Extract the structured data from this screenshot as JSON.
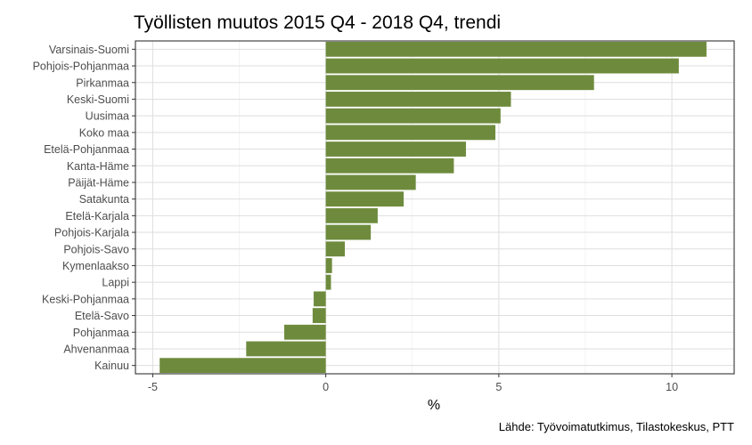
{
  "chart_data": {
    "type": "bar",
    "orientation": "horizontal",
    "title": "Työllisten muutos 2015 Q4 - 2018 Q4, trendi",
    "xlabel": "%",
    "ylabel": "",
    "caption": "Lähde: Työvoimatutkimus, Tilastokeskus, PTT",
    "xlim": [
      -5.5,
      11.8
    ],
    "xticks": [
      -5,
      0,
      5,
      10
    ],
    "xtick_labels": [
      "-5",
      "0",
      "5",
      "10"
    ],
    "grid": true,
    "bar_color": "#6e8b3d",
    "categories": [
      "Varsinais-Suomi",
      "Pohjois-Pohjanmaa",
      "Pirkanmaa",
      "Keski-Suomi",
      "Uusimaa",
      "Koko maa",
      "Etelä-Pohjanmaa",
      "Kanta-Häme",
      "Päijät-Häme",
      "Satakunta",
      "Etelä-Karjala",
      "Pohjois-Karjala",
      "Pohjois-Savo",
      "Kymenlaakso",
      "Lappi",
      "Keski-Pohjanmaa",
      "Etelä-Savo",
      "Pohjanmaa",
      "Ahvenanmaa",
      "Kainuu"
    ],
    "values": [
      11.0,
      10.2,
      7.75,
      5.35,
      5.05,
      4.9,
      4.05,
      3.7,
      2.6,
      2.25,
      1.5,
      1.3,
      0.55,
      0.18,
      0.15,
      -0.35,
      -0.38,
      -1.2,
      -2.3,
      -4.8
    ]
  }
}
